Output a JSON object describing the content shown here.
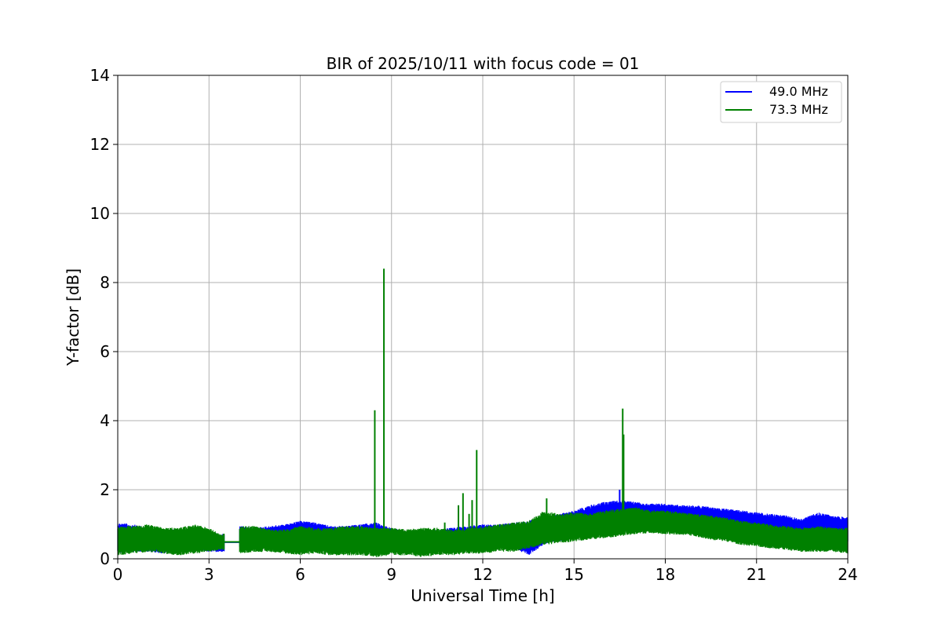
{
  "chart_data": {
    "type": "line",
    "title": "BIR of 2025/10/11 with focus code = 01",
    "xlabel": "Universal Time [h]",
    "ylabel": "Y-factor [dB]",
    "xlim": [
      0,
      24
    ],
    "ylim": [
      0,
      14
    ],
    "xticks": [
      0,
      3,
      6,
      9,
      12,
      15,
      18,
      21,
      24
    ],
    "yticks": [
      0,
      2,
      4,
      6,
      8,
      10,
      12,
      14
    ],
    "grid": true,
    "legend_position": "top-right",
    "series": [
      {
        "name": "49.0 MHz",
        "color": "#0000ff",
        "style": "dense noisy time series (envelope min/max)",
        "gaps": [
          [
            3.5,
            4.0
          ]
        ],
        "envelope": {
          "x": [
            0,
            0.5,
            1,
            1.5,
            2,
            2.5,
            3,
            3.4,
            4.0,
            4.5,
            5,
            5.5,
            6,
            6.5,
            7,
            7.5,
            8,
            8.5,
            9,
            9.5,
            10,
            10.5,
            11,
            11.5,
            12,
            12.5,
            13,
            13.5,
            14,
            14.5,
            15,
            15.5,
            16,
            16.5,
            17,
            17.5,
            18,
            18.5,
            19,
            19.5,
            20,
            20.5,
            21,
            21.5,
            22,
            22.5,
            23,
            23.5,
            24
          ],
          "ymin": [
            0.15,
            0.2,
            0.2,
            0.15,
            0.2,
            0.25,
            0.2,
            0.2,
            0.3,
            0.3,
            0.3,
            0.35,
            0.4,
            0.4,
            0.35,
            0.3,
            0.3,
            0.25,
            0.2,
            0.2,
            0.2,
            0.2,
            0.25,
            0.3,
            0.3,
            0.35,
            0.3,
            0.1,
            0.4,
            0.5,
            0.6,
            0.7,
            0.8,
            0.9,
            0.9,
            0.9,
            0.9,
            0.9,
            0.85,
            0.8,
            0.75,
            0.65,
            0.6,
            0.55,
            0.5,
            0.55,
            0.5,
            0.5,
            0.5
          ],
          "ymax": [
            1.05,
            1.0,
            0.9,
            0.85,
            0.85,
            0.85,
            0.8,
            0.7,
            0.95,
            0.9,
            0.95,
            1.0,
            1.1,
            1.05,
            0.95,
            0.95,
            1.0,
            1.05,
            0.9,
            0.8,
            0.8,
            0.85,
            0.9,
            0.95,
            1.0,
            1.0,
            1.05,
            1.1,
            1.2,
            1.3,
            1.4,
            1.55,
            1.65,
            1.7,
            1.65,
            1.6,
            1.6,
            1.55,
            1.55,
            1.5,
            1.45,
            1.4,
            1.35,
            1.3,
            1.25,
            1.15,
            1.35,
            1.25,
            1.2
          ]
        },
        "spikes": [
          [
            16.5,
            2.0
          ]
        ]
      },
      {
        "name": "73.3 MHz",
        "color": "#008000",
        "style": "dense noisy time series (envelope min/max)",
        "gaps": [
          [
            3.5,
            4.0
          ]
        ],
        "envelope": {
          "x": [
            0,
            0.5,
            1,
            1.5,
            2,
            2.5,
            3,
            3.4,
            4.0,
            4.5,
            5,
            5.5,
            6,
            6.5,
            7,
            7.5,
            8,
            8.5,
            9,
            9.5,
            10,
            10.5,
            11,
            11.5,
            12,
            12.5,
            13,
            13.5,
            14,
            14.5,
            15,
            15.5,
            16,
            16.5,
            17,
            17.5,
            18,
            18.5,
            19,
            19.5,
            20,
            20.5,
            21,
            21.5,
            22,
            22.5,
            23,
            23.5,
            24
          ],
          "ymin": [
            0.1,
            0.15,
            0.2,
            0.15,
            0.1,
            0.15,
            0.2,
            0.25,
            0.15,
            0.2,
            0.2,
            0.15,
            0.1,
            0.15,
            0.1,
            0.1,
            0.1,
            0.05,
            0.1,
            0.1,
            0.05,
            0.1,
            0.1,
            0.15,
            0.15,
            0.2,
            0.2,
            0.3,
            0.4,
            0.45,
            0.5,
            0.55,
            0.6,
            0.65,
            0.7,
            0.75,
            0.7,
            0.7,
            0.65,
            0.55,
            0.5,
            0.4,
            0.35,
            0.3,
            0.25,
            0.2,
            0.2,
            0.2,
            0.15
          ],
          "ymax": [
            0.95,
            0.95,
            1.0,
            0.9,
            0.9,
            1.0,
            0.9,
            0.7,
            0.95,
            0.95,
            0.85,
            0.85,
            0.95,
            0.9,
            0.9,
            0.95,
            0.95,
            0.9,
            0.9,
            0.85,
            0.9,
            0.9,
            0.85,
            0.9,
            0.95,
            1.0,
            1.05,
            1.1,
            1.4,
            1.3,
            1.35,
            1.3,
            1.4,
            1.45,
            1.5,
            1.4,
            1.4,
            1.35,
            1.3,
            1.25,
            1.2,
            1.1,
            1.05,
            1.0,
            0.95,
            0.9,
            0.95,
            0.9,
            0.9
          ]
        },
        "spikes": [
          [
            8.45,
            4.3
          ],
          [
            8.75,
            8.4
          ],
          [
            10.75,
            1.05
          ],
          [
            11.2,
            1.55
          ],
          [
            11.35,
            1.9
          ],
          [
            11.55,
            1.3
          ],
          [
            11.65,
            1.7
          ],
          [
            11.8,
            3.15
          ],
          [
            14.1,
            1.75
          ],
          [
            16.6,
            4.35
          ],
          [
            16.63,
            3.6
          ]
        ]
      }
    ]
  }
}
